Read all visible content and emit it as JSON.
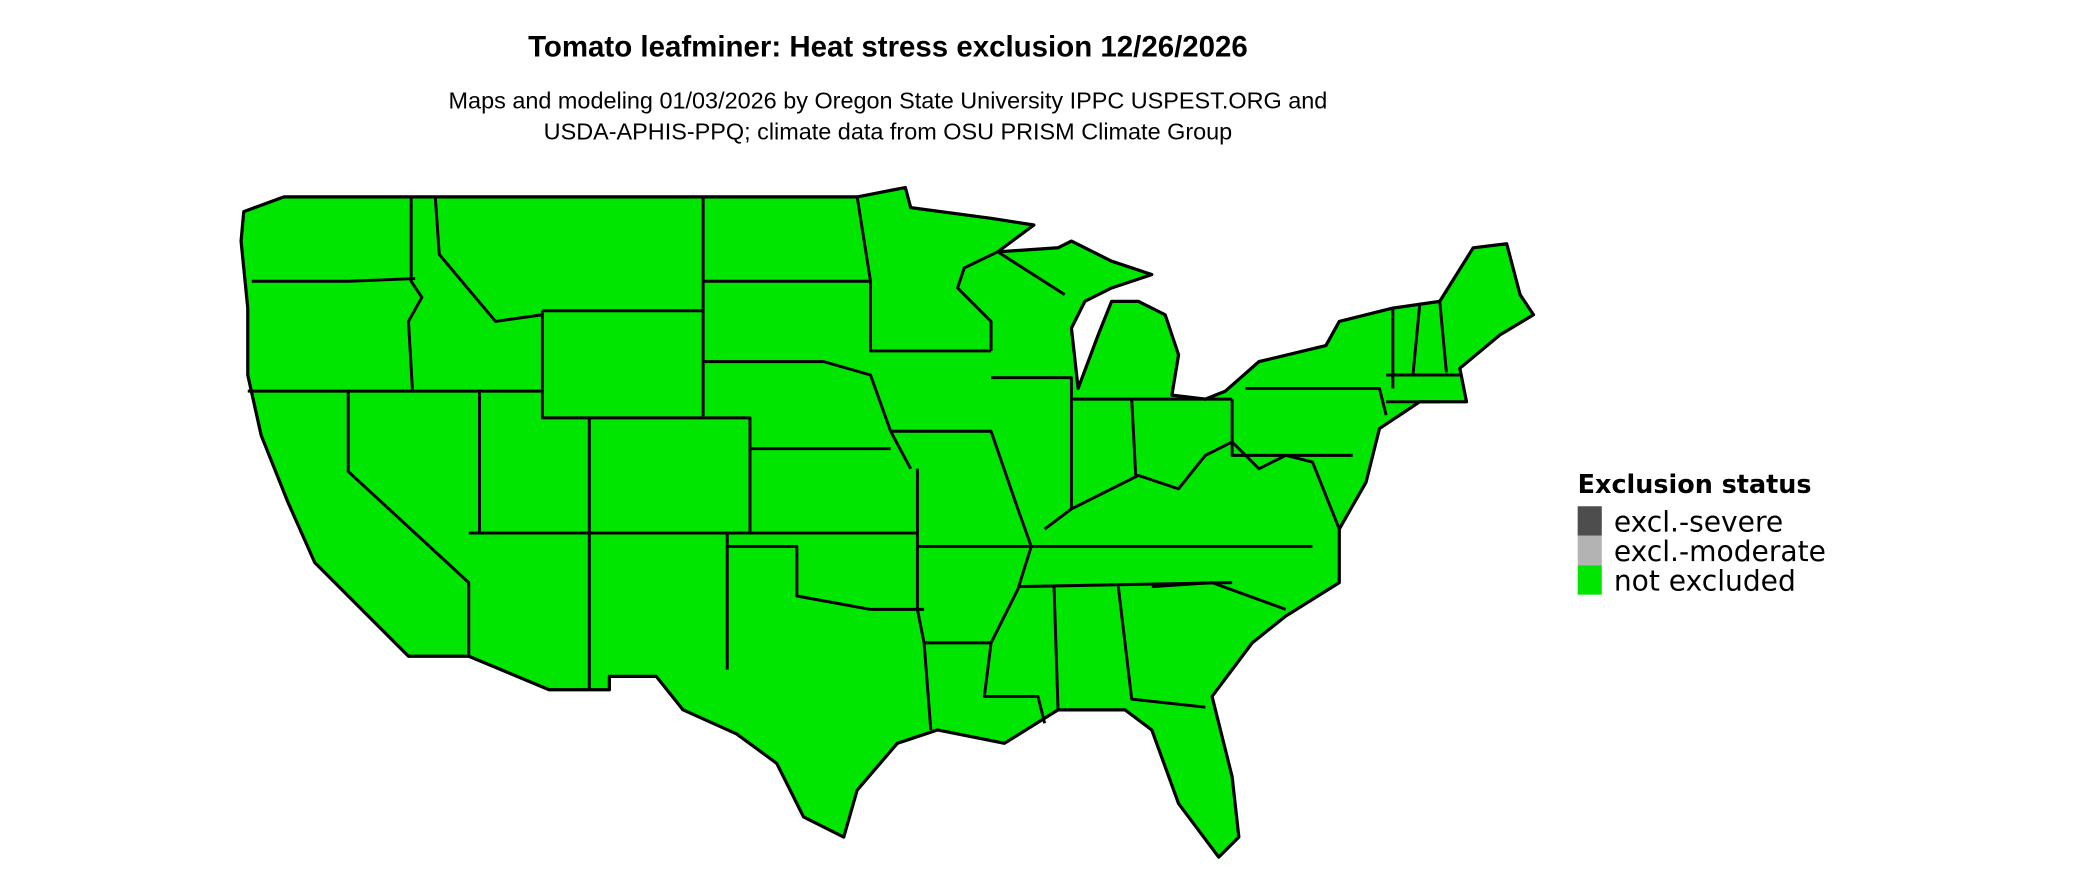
{
  "title": "Tomato leafminer: Heat stress exclusion 12/26/2026",
  "subtitle_line1": "Maps and modeling 01/03/2026 by Oregon State University IPPC USPEST.ORG and",
  "subtitle_line2": "USDA-APHIS-PPQ; climate data from OSU PRISM Climate Group",
  "map": {
    "region": "Contiguous United States",
    "dominant_status": "not excluded",
    "fill_color": "#00e600"
  },
  "legend": {
    "title": "Exclusion status",
    "items": [
      {
        "label": "excl.-severe",
        "color": "#4d4d4d"
      },
      {
        "label": "excl.-moderate",
        "color": "#b3b3b3"
      },
      {
        "label": "not excluded",
        "color": "#00e600"
      }
    ]
  }
}
